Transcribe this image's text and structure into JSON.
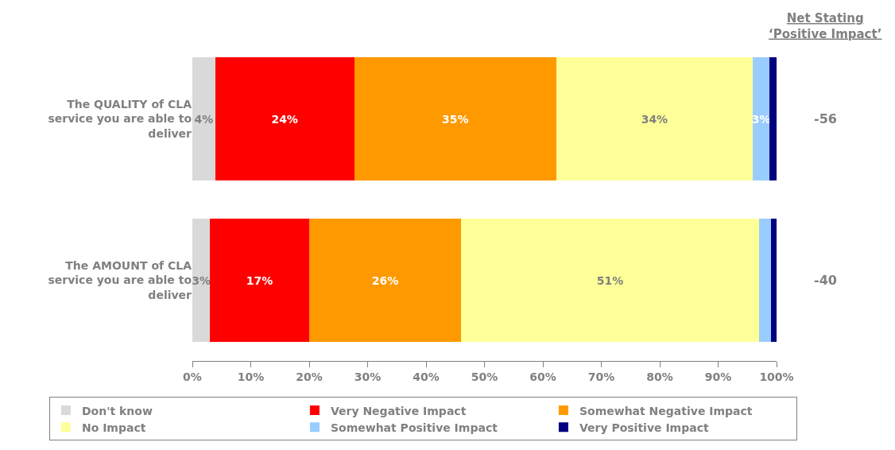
{
  "chart_data": {
    "type": "bar",
    "orientation": "horizontal",
    "stacked": true,
    "categories": [
      "The QUALITY of CLA service you are able to deliver",
      "The AMOUNT of CLA service you are able to deliver"
    ],
    "series": [
      {
        "name": "Don't know",
        "color": "#d9d9d9",
        "values": [
          3.9,
          3
        ],
        "value_labels": [
          "4%",
          "3%"
        ]
      },
      {
        "name": "Very Negative Impact",
        "color": "#ff0000",
        "values": [
          23.8,
          17
        ],
        "value_labels": [
          "24%",
          "17%"
        ]
      },
      {
        "name": "Somewhat Negative Impact",
        "color": "#ff9900",
        "values": [
          34.6,
          26
        ],
        "value_labels": [
          "35%",
          "26%"
        ]
      },
      {
        "name": "No Impact",
        "color": "#ffff99",
        "values": [
          33.6,
          51
        ],
        "value_labels": [
          "34%",
          "51%"
        ]
      },
      {
        "name": "Somewhat Positive Impact",
        "color": "#99ccff",
        "values": [
          2.9,
          2
        ],
        "value_labels": [
          "3%",
          null
        ]
      },
      {
        "name": "Very Positive Impact",
        "color": "#000080",
        "values": [
          1.2,
          1
        ]
      }
    ],
    "xlim": [
      0,
      100
    ],
    "xticks": [
      {
        "value": 0,
        "label": "0%"
      },
      {
        "value": 10,
        "label": "10%"
      },
      {
        "value": 20,
        "label": "20%"
      },
      {
        "value": 30,
        "label": "30%"
      },
      {
        "value": 40,
        "label": "40%"
      },
      {
        "value": 50,
        "label": "50%"
      },
      {
        "value": 60,
        "label": "60%"
      },
      {
        "value": 70,
        "label": "70%"
      },
      {
        "value": 80,
        "label": "80%"
      },
      {
        "value": 90,
        "label": "90%"
      },
      {
        "value": 100,
        "label": "100%"
      }
    ],
    "legend": "bottom",
    "annotations": [
      "Net Stating\n‘Positive Impact’",
      "-56",
      "-40"
    ]
  }
}
